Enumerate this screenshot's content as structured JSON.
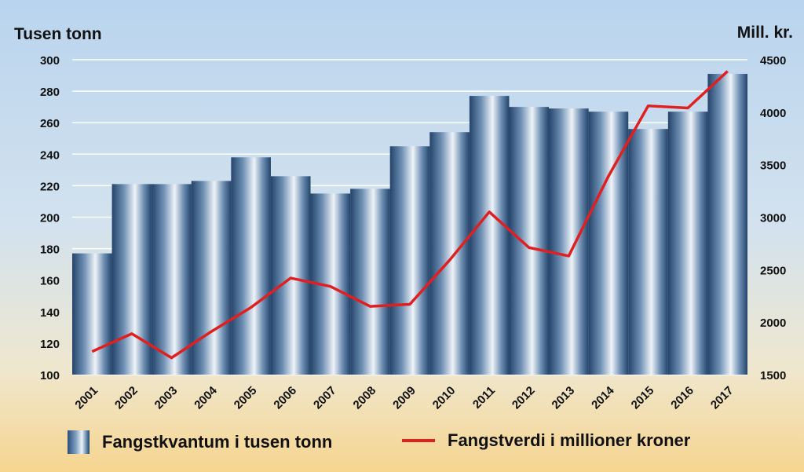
{
  "chart_data": {
    "type": "bar",
    "categories": [
      "2001",
      "2002",
      "2003",
      "2004",
      "2005",
      "2006",
      "2007",
      "2008",
      "2009",
      "2010",
      "2011",
      "2012",
      "2013",
      "2014",
      "2015",
      "2016",
      "2017"
    ],
    "ylabel": "Tusen tonn",
    "y2label": "Mill. kr.",
    "ylim": [
      100,
      300
    ],
    "y2lim": [
      1500,
      4500
    ],
    "yticks": [
      100,
      120,
      140,
      160,
      180,
      200,
      220,
      240,
      260,
      280,
      300
    ],
    "y2ticks": [
      1500,
      2000,
      2500,
      3000,
      3500,
      4000,
      4500
    ],
    "grid": true,
    "legend_position": "bottom",
    "series": [
      {
        "name": "Fangstkvantum i tusen tonn",
        "type": "bar",
        "axis": "left",
        "values": [
          177,
          221,
          221,
          223,
          238,
          226,
          215,
          218,
          245,
          254,
          277,
          270,
          269,
          267,
          256,
          267,
          291
        ]
      },
      {
        "name": "Fangstverdi i millioner kroner",
        "type": "line",
        "axis": "right",
        "color": "#e02020",
        "values": [
          1720,
          1890,
          1660,
          1910,
          2140,
          2420,
          2340,
          2150,
          2170,
          2590,
          3050,
          2710,
          2630,
          3390,
          4060,
          4040,
          4390
        ]
      }
    ]
  },
  "colors": {
    "line": "#e02020",
    "bar_dark": "#26466c",
    "bar_light": "#eef3f8",
    "grid": "#ffffff"
  }
}
